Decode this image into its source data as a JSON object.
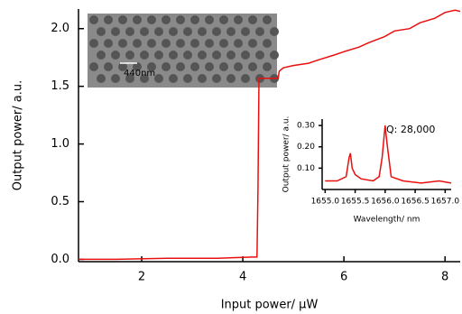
{
  "chart_data": [
    {
      "type": "line",
      "x_label": "Input power/ μW",
      "y_label": "Output power/ a.u.",
      "xlim": [
        0.75,
        8.3
      ],
      "ylim": [
        -0.02,
        2.17
      ],
      "xticks": [
        2,
        4,
        6,
        8
      ],
      "yticks": [
        {
          "value": 0,
          "label": "0.0"
        },
        0.5,
        {
          "value": 1,
          "label": "1.0"
        },
        1.5,
        {
          "value": 2,
          "label": "2.0"
        }
      ],
      "annotations": [
        "440nm"
      ],
      "series": [
        {
          "color": "#e8100e",
          "x": [
            0.75,
            1.5,
            2.5,
            3.5,
            4.2,
            4.28,
            4.3,
            4.32,
            4.5,
            4.7,
            4.72,
            4.8,
            5.0,
            5.3,
            5.5,
            5.8,
            6.0,
            6.3,
            6.5,
            6.8,
            7.0,
            7.3,
            7.5,
            7.8,
            8.0,
            8.2,
            8.3
          ],
          "values": [
            0.0,
            0.0,
            0.01,
            0.01,
            0.02,
            0.02,
            0.6,
            1.57,
            1.57,
            1.57,
            1.63,
            1.66,
            1.68,
            1.7,
            1.73,
            1.77,
            1.8,
            1.84,
            1.88,
            1.93,
            1.98,
            2.0,
            2.05,
            2.09,
            2.14,
            2.16,
            2.15
          ]
        }
      ]
    },
    {
      "type": "line",
      "x_label": "Wavelength/ nm",
      "y_label": "Output power/ a.u.",
      "xlim": [
        1654.95,
        1657.1
      ],
      "ylim": [
        0,
        0.33
      ],
      "xticks": [
        {
          "value": 1655,
          "label": "1655.0"
        },
        {
          "value": 1655.5,
          "label": "1655.5"
        },
        {
          "value": 1656,
          "label": "1656.0"
        },
        {
          "value": 1656.5,
          "label": "1656.5"
        },
        {
          "value": 1657,
          "label": "1657.0"
        }
      ],
      "yticks": [
        {
          "value": 0.1,
          "label": "0.10"
        },
        {
          "value": 0.2,
          "label": "0.20"
        },
        {
          "value": 0.3,
          "label": "0.30"
        }
      ],
      "annotations": [
        "Q: 28,000"
      ],
      "series": [
        {
          "color": "#e8100e",
          "x": [
            1655.0,
            1655.2,
            1655.35,
            1655.4,
            1655.42,
            1655.45,
            1655.5,
            1655.6,
            1655.8,
            1655.9,
            1655.95,
            1656.0,
            1656.03,
            1656.1,
            1656.3,
            1656.6,
            1656.9,
            1657.1
          ],
          "values": [
            0.04,
            0.04,
            0.06,
            0.15,
            0.17,
            0.1,
            0.07,
            0.05,
            0.04,
            0.06,
            0.15,
            0.3,
            0.22,
            0.06,
            0.04,
            0.03,
            0.04,
            0.03
          ]
        }
      ]
    }
  ]
}
